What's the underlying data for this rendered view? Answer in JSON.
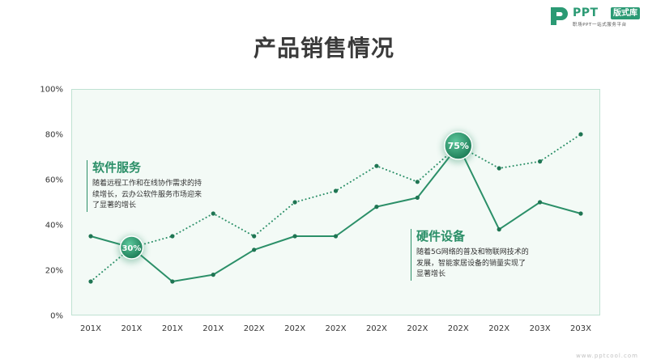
{
  "logo": {
    "wordmark": "PPT",
    "badge": "版式库",
    "tagline": "职场PPT一站式服务平台",
    "brand_color": "#2b9a74"
  },
  "title": "产品销售情况",
  "annotations": {
    "software": {
      "title": "软件服务",
      "body": "随着远程工作和在线协作需求的持续增长，云办公软件服务市场迎来了显著的增长"
    },
    "hardware": {
      "title": "硬件设备",
      "body": "随着5G网络的普及和物联网技术的发展，智能家居设备的销量实现了显著增长"
    }
  },
  "footer": {
    "url": "www.pptcool.com"
  },
  "colors": {
    "series_color": "#2b8f68",
    "grid_color": "#e6e6e6",
    "plot_bg": "#f3faf6",
    "plot_border": "#bfe2d2",
    "text_color": "#333333"
  },
  "chart_data": {
    "type": "line",
    "title": "产品销售情况",
    "categories": [
      "201X",
      "201X",
      "201X",
      "201X",
      "202X",
      "202X",
      "202X",
      "202X",
      "202X",
      "202X",
      "202X",
      "203X",
      "203X"
    ],
    "series": [
      {
        "style": "solid",
        "values": [
          35,
          30,
          15,
          18,
          29,
          35,
          35,
          48,
          52,
          75,
          38,
          50,
          45
        ]
      },
      {
        "style": "dotted",
        "values": [
          15,
          30,
          35,
          45,
          35,
          50,
          55,
          66,
          59,
          75,
          65,
          68,
          80
        ]
      }
    ],
    "highlights": [
      {
        "index": 1,
        "label": "30%"
      },
      {
        "index": 9,
        "label": "75%"
      }
    ],
    "yticks": [
      "0%",
      "20%",
      "40%",
      "60%",
      "80%",
      "100%"
    ],
    "ylim": [
      0,
      100
    ],
    "grid": false,
    "legend": "none",
    "xlabel": "",
    "ylabel": ""
  }
}
